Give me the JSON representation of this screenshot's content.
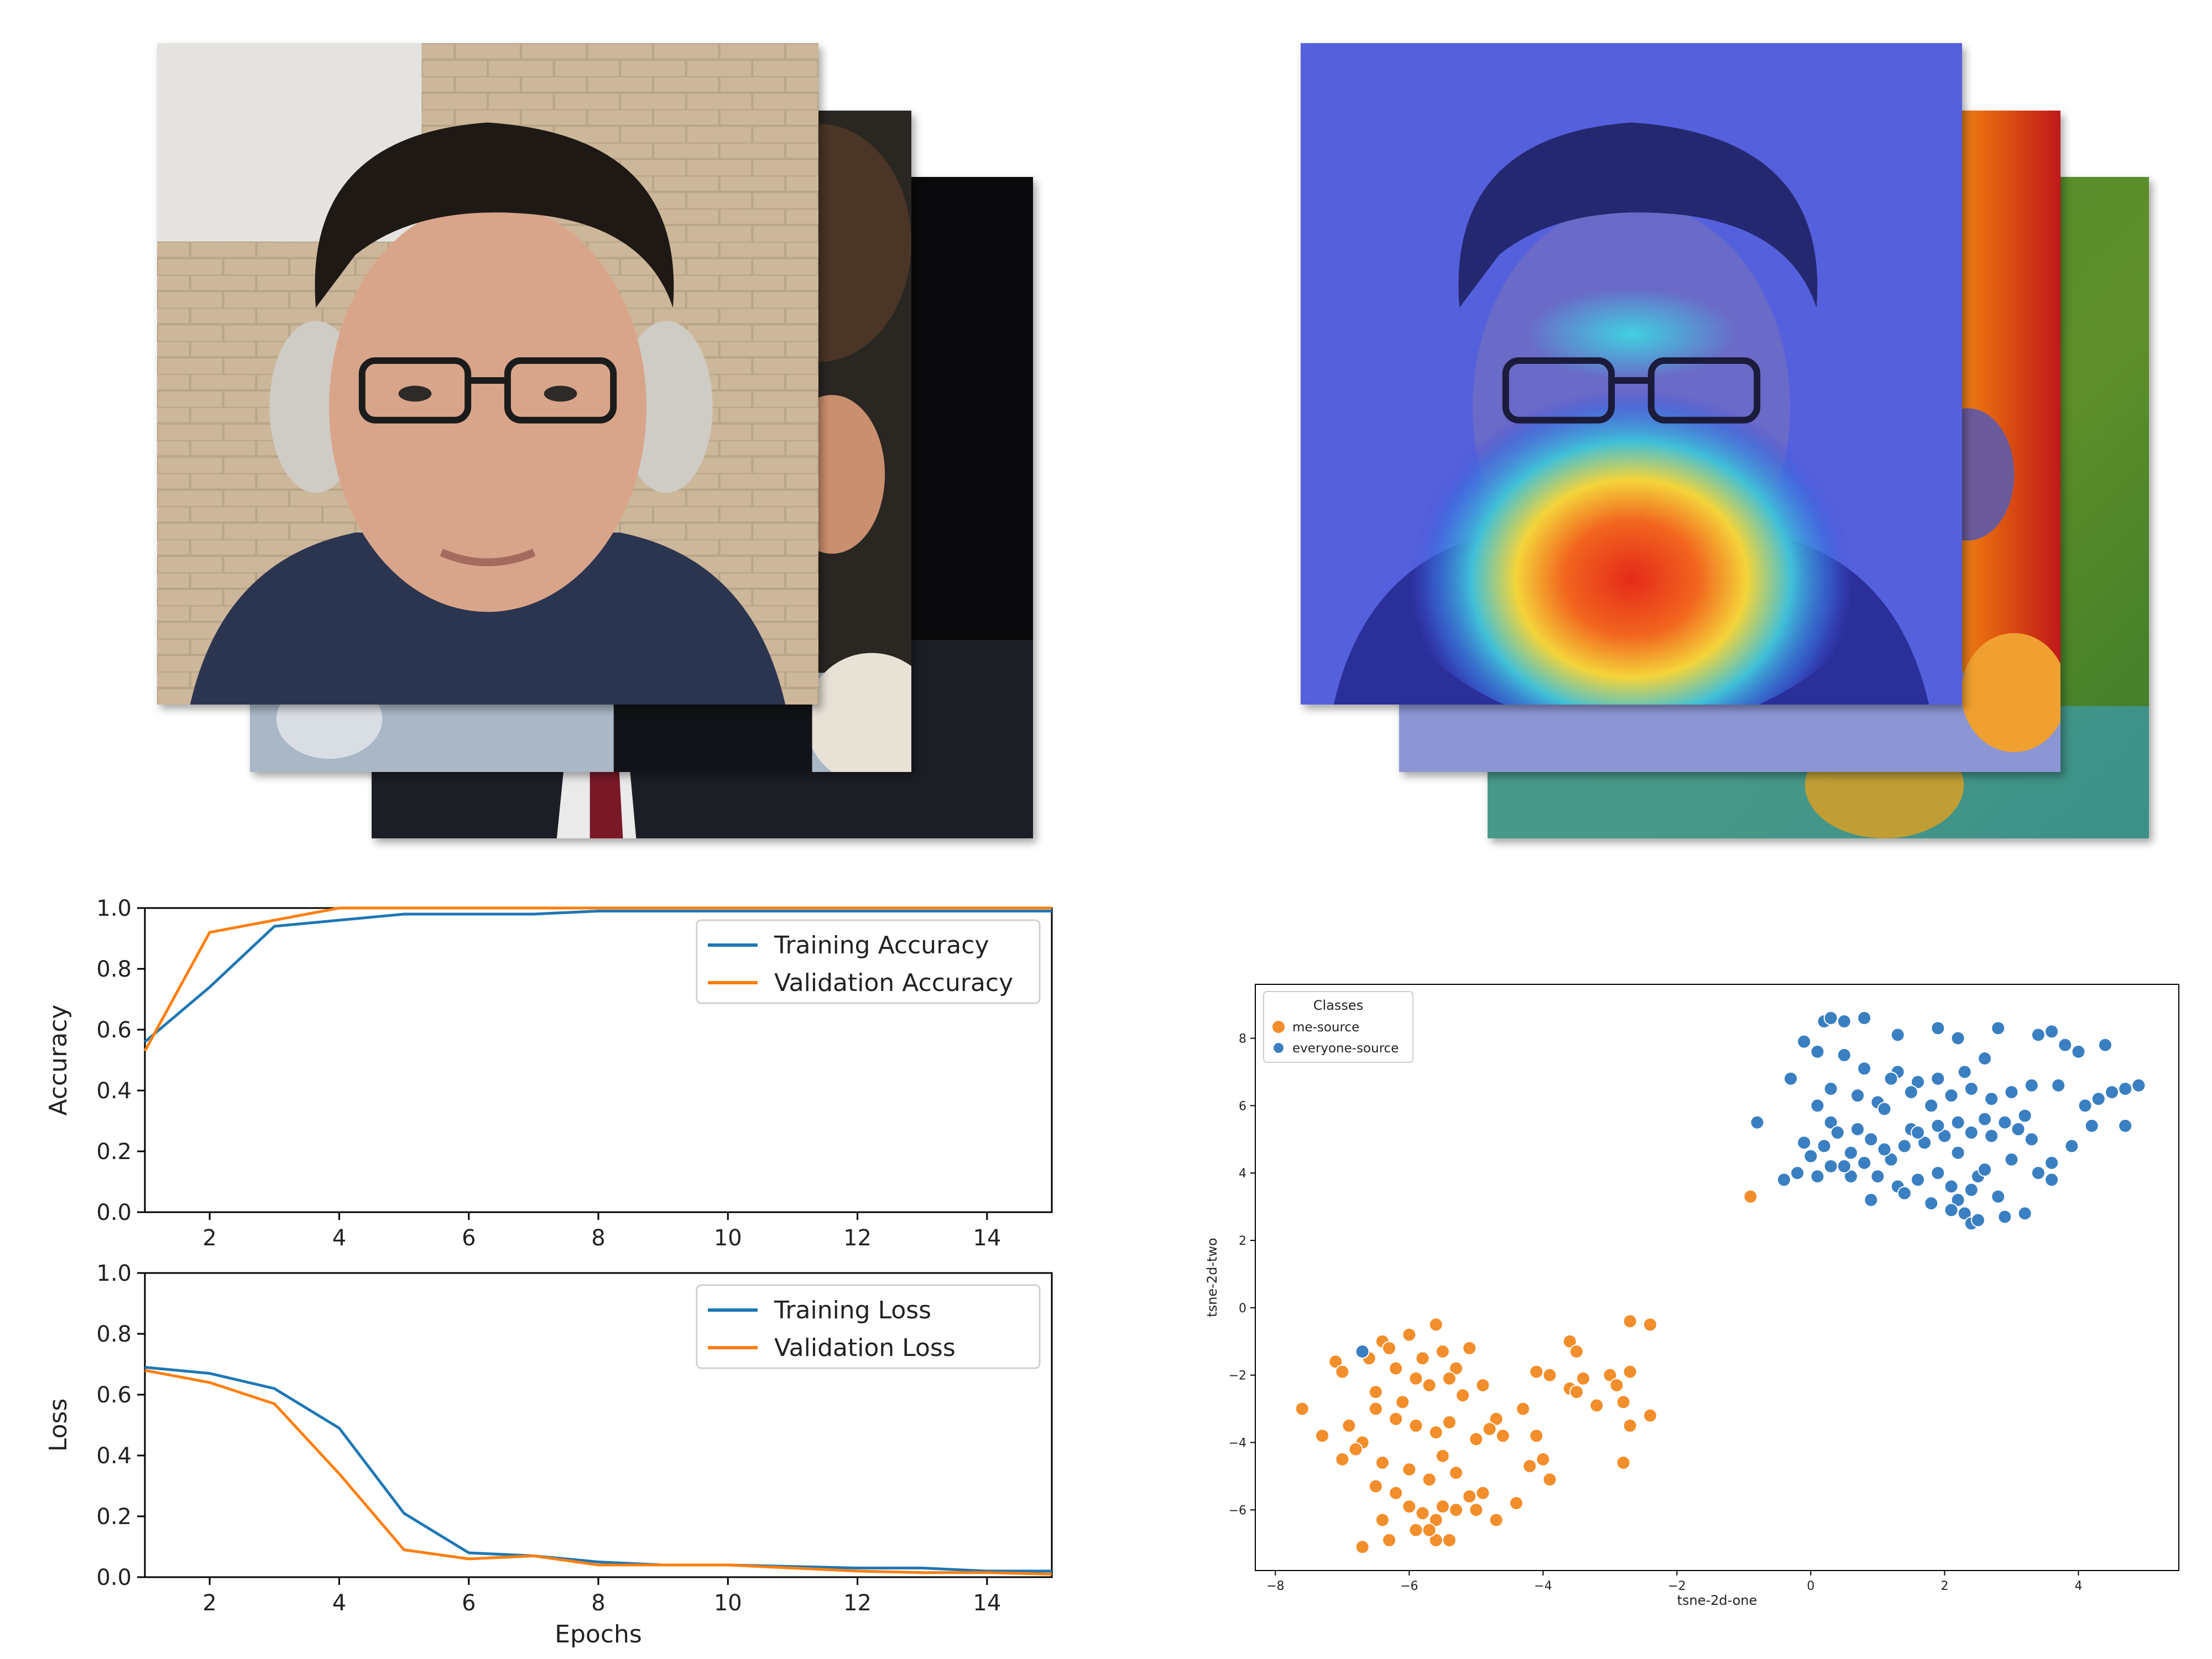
{
  "chart_data": [
    {
      "type": "line",
      "x": [
        1,
        2,
        3,
        4,
        5,
        6,
        7,
        8,
        9,
        10,
        11,
        12,
        13,
        14,
        15
      ],
      "ylabel": "Accuracy",
      "xlim": [
        1,
        15
      ],
      "ylim": [
        0,
        1
      ],
      "xticks": [
        2,
        4,
        6,
        8,
        10,
        12,
        14
      ],
      "yticks": [
        0.0,
        0.2,
        0.4,
        0.6,
        0.8,
        1.0
      ],
      "legend_position": "top-right",
      "series": [
        {
          "name": "Training Accuracy",
          "color": "#1f77b4",
          "values": [
            0.56,
            0.74,
            0.94,
            0.96,
            0.98,
            0.98,
            0.98,
            0.99,
            0.99,
            0.99,
            0.99,
            0.99,
            0.99,
            0.99,
            0.99
          ]
        },
        {
          "name": "Validation Accuracy",
          "color": "#ff7f0e",
          "values": [
            0.53,
            0.92,
            0.96,
            1.0,
            1.0,
            1.0,
            1.0,
            1.0,
            1.0,
            1.0,
            1.0,
            1.0,
            1.0,
            1.0,
            1.0
          ]
        }
      ]
    },
    {
      "type": "line",
      "x": [
        1,
        2,
        3,
        4,
        5,
        6,
        7,
        8,
        9,
        10,
        11,
        12,
        13,
        14,
        15
      ],
      "xlabel": "Epochs",
      "ylabel": "Loss",
      "xlim": [
        1,
        15
      ],
      "ylim": [
        0,
        1
      ],
      "xticks": [
        2,
        4,
        6,
        8,
        10,
        12,
        14
      ],
      "yticks": [
        0.0,
        0.2,
        0.4,
        0.6,
        0.8,
        1.0
      ],
      "legend_position": "top-right",
      "series": [
        {
          "name": "Training Loss",
          "color": "#1f77b4",
          "values": [
            0.69,
            0.67,
            0.62,
            0.49,
            0.21,
            0.08,
            0.07,
            0.05,
            0.04,
            0.04,
            0.035,
            0.03,
            0.03,
            0.02,
            0.02
          ]
        },
        {
          "name": "Validation Loss",
          "color": "#ff7f0e",
          "values": [
            0.68,
            0.64,
            0.57,
            0.34,
            0.09,
            0.06,
            0.07,
            0.04,
            0.04,
            0.04,
            0.03,
            0.02,
            0.015,
            0.015,
            0.01
          ]
        }
      ]
    },
    {
      "type": "scatter",
      "xlabel": "tsne-2d-one",
      "ylabel": "tsne-2d-two",
      "xlim": [
        -8.3,
        5.5
      ],
      "ylim": [
        -7.8,
        9.6
      ],
      "xticks": [
        -8,
        -6,
        -4,
        -2,
        0,
        2,
        4
      ],
      "yticks": [
        -6,
        -4,
        -2,
        0,
        2,
        4,
        6,
        8
      ],
      "legend_title": "Classes",
      "legend_position": "top-left",
      "series": [
        {
          "name": "me-source",
          "color": "#f28e2b",
          "points": [
            [
              -7.6,
              -3.0
            ],
            [
              -7.1,
              -1.6
            ],
            [
              -7.0,
              -1.9
            ],
            [
              -6.6,
              -1.5
            ],
            [
              -6.5,
              -2.5
            ],
            [
              -6.4,
              -1.0
            ],
            [
              -6.3,
              -1.2
            ],
            [
              -6.2,
              -1.8
            ],
            [
              -6.0,
              -0.8
            ],
            [
              -5.8,
              -1.5
            ],
            [
              -5.6,
              -0.5
            ],
            [
              -5.5,
              -1.3
            ],
            [
              -5.3,
              -1.8
            ],
            [
              -5.1,
              -1.2
            ],
            [
              -5.4,
              -2.1
            ],
            [
              -5.7,
              -2.3
            ],
            [
              -5.9,
              -2.1
            ],
            [
              -6.1,
              -2.8
            ],
            [
              -5.2,
              -2.6
            ],
            [
              -4.9,
              -2.3
            ],
            [
              -4.7,
              -3.3
            ],
            [
              -4.6,
              -3.8
            ],
            [
              -4.8,
              -3.6
            ],
            [
              -5.0,
              -3.9
            ],
            [
              -5.4,
              -3.4
            ],
            [
              -5.6,
              -3.7
            ],
            [
              -5.9,
              -3.5
            ],
            [
              -6.2,
              -3.3
            ],
            [
              -6.5,
              -3.0
            ],
            [
              -6.7,
              -4.0
            ],
            [
              -6.9,
              -3.5
            ],
            [
              -7.3,
              -3.8
            ],
            [
              -7.0,
              -4.5
            ],
            [
              -6.8,
              -4.2
            ],
            [
              -6.4,
              -4.6
            ],
            [
              -6.0,
              -4.8
            ],
            [
              -5.7,
              -5.1
            ],
            [
              -5.5,
              -4.4
            ],
            [
              -5.3,
              -4.9
            ],
            [
              -5.1,
              -5.6
            ],
            [
              -4.9,
              -5.5
            ],
            [
              -4.7,
              -6.3
            ],
            [
              -5.0,
              -6.0
            ],
            [
              -5.3,
              -6.0
            ],
            [
              -5.5,
              -5.9
            ],
            [
              -5.6,
              -6.3
            ],
            [
              -5.8,
              -6.1
            ],
            [
              -6.0,
              -5.9
            ],
            [
              -6.2,
              -5.5
            ],
            [
              -6.4,
              -6.3
            ],
            [
              -6.5,
              -5.3
            ],
            [
              -6.7,
              -7.1
            ],
            [
              -6.3,
              -6.9
            ],
            [
              -5.6,
              -6.9
            ],
            [
              -5.4,
              -6.9
            ],
            [
              -5.7,
              -6.6
            ],
            [
              -5.9,
              -6.6
            ],
            [
              -4.4,
              -5.8
            ],
            [
              -4.2,
              -4.7
            ],
            [
              -4.0,
              -4.5
            ],
            [
              -3.9,
              -5.1
            ],
            [
              -4.1,
              -3.8
            ],
            [
              -4.3,
              -3.0
            ],
            [
              -4.1,
              -1.9
            ],
            [
              -3.9,
              -2.0
            ],
            [
              -3.6,
              -1.0
            ],
            [
              -3.5,
              -1.3
            ],
            [
              -3.4,
              -2.1
            ],
            [
              -3.6,
              -2.4
            ],
            [
              -3.5,
              -2.5
            ],
            [
              -3.2,
              -2.9
            ],
            [
              -3.0,
              -2.0
            ],
            [
              -2.9,
              -2.3
            ],
            [
              -2.8,
              -2.8
            ],
            [
              -2.7,
              -3.5
            ],
            [
              -2.8,
              -4.6
            ],
            [
              -2.4,
              -3.2
            ],
            [
              -2.7,
              -0.4
            ],
            [
              -2.4,
              -0.5
            ],
            [
              -2.7,
              -1.9
            ],
            [
              -0.9,
              3.3
            ]
          ]
        },
        {
          "name": "everyone-source",
          "color": "#3a7fc1",
          "points": [
            [
              -6.7,
              -1.3
            ],
            [
              -0.8,
              5.5
            ],
            [
              -0.4,
              3.8
            ],
            [
              -0.2,
              4.0
            ],
            [
              0.1,
              3.9
            ],
            [
              0.3,
              4.2
            ],
            [
              0.0,
              4.5
            ],
            [
              -0.1,
              4.9
            ],
            [
              0.2,
              4.8
            ],
            [
              0.3,
              5.5
            ],
            [
              0.1,
              6.0
            ],
            [
              0.4,
              5.2
            ],
            [
              -0.3,
              6.8
            ],
            [
              0.1,
              7.6
            ],
            [
              -0.1,
              7.9
            ],
            [
              0.2,
              8.5
            ],
            [
              0.3,
              8.6
            ],
            [
              0.5,
              8.5
            ],
            [
              0.8,
              8.6
            ],
            [
              1.3,
              8.1
            ],
            [
              1.9,
              8.3
            ],
            [
              2.2,
              8.0
            ],
            [
              2.8,
              8.3
            ],
            [
              3.4,
              8.1
            ],
            [
              3.6,
              8.2
            ],
            [
              4.0,
              7.6
            ],
            [
              4.4,
              7.8
            ],
            [
              3.8,
              7.8
            ],
            [
              2.6,
              7.4
            ],
            [
              2.3,
              7.0
            ],
            [
              1.9,
              6.8
            ],
            [
              1.6,
              6.7
            ],
            [
              1.3,
              7.0
            ],
            [
              0.8,
              7.1
            ],
            [
              0.5,
              7.5
            ],
            [
              0.3,
              6.5
            ],
            [
              0.7,
              6.3
            ],
            [
              1.0,
              6.1
            ],
            [
              1.2,
              6.8
            ],
            [
              1.5,
              6.4
            ],
            [
              1.8,
              6.0
            ],
            [
              2.1,
              6.3
            ],
            [
              2.4,
              6.5
            ],
            [
              2.7,
              6.2
            ],
            [
              3.0,
              6.4
            ],
            [
              3.3,
              6.6
            ],
            [
              3.7,
              6.6
            ],
            [
              4.1,
              6.0
            ],
            [
              4.3,
              6.2
            ],
            [
              4.5,
              6.4
            ],
            [
              4.7,
              6.5
            ],
            [
              4.9,
              6.6
            ],
            [
              4.7,
              5.4
            ],
            [
              4.2,
              5.4
            ],
            [
              3.9,
              4.8
            ],
            [
              3.6,
              4.3
            ],
            [
              3.6,
              3.8
            ],
            [
              3.3,
              5.0
            ],
            [
              3.1,
              5.3
            ],
            [
              3.2,
              5.7
            ],
            [
              2.9,
              5.5
            ],
            [
              2.7,
              5.1
            ],
            [
              2.6,
              5.6
            ],
            [
              2.4,
              5.2
            ],
            [
              2.2,
              5.5
            ],
            [
              2.0,
              5.1
            ],
            [
              1.9,
              5.4
            ],
            [
              1.7,
              4.9
            ],
            [
              1.5,
              5.3
            ],
            [
              1.4,
              4.8
            ],
            [
              1.2,
              4.4
            ],
            [
              1.1,
              4.7
            ],
            [
              0.9,
              5.0
            ],
            [
              0.7,
              5.3
            ],
            [
              0.6,
              4.6
            ],
            [
              0.8,
              4.3
            ],
            [
              1.0,
              3.9
            ],
            [
              1.3,
              3.6
            ],
            [
              1.6,
              3.8
            ],
            [
              1.9,
              4.0
            ],
            [
              2.1,
              3.6
            ],
            [
              2.2,
              3.2
            ],
            [
              2.4,
              3.5
            ],
            [
              2.5,
              3.9
            ],
            [
              2.6,
              4.1
            ],
            [
              2.8,
              3.3
            ],
            [
              2.9,
              2.7
            ],
            [
              2.3,
              2.8
            ],
            [
              2.1,
              2.9
            ],
            [
              2.4,
              2.5
            ],
            [
              2.5,
              2.6
            ],
            [
              3.2,
              2.8
            ],
            [
              1.8,
              3.1
            ],
            [
              1.4,
              3.4
            ],
            [
              0.9,
              3.2
            ],
            [
              0.6,
              3.9
            ],
            [
              0.5,
              4.2
            ],
            [
              1.1,
              5.9
            ],
            [
              1.6,
              5.2
            ],
            [
              2.2,
              4.6
            ],
            [
              3.0,
              4.4
            ],
            [
              3.4,
              4.0
            ]
          ]
        }
      ]
    }
  ]
}
